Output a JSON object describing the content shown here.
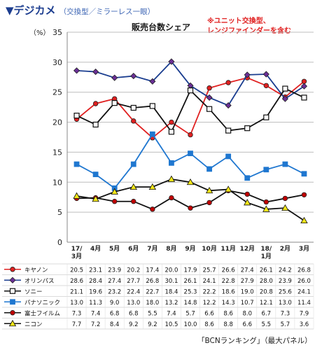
{
  "header": {
    "title": "▼デジカメ",
    "subtitle": "（交換型／ミラーレス一眼）"
  },
  "note": {
    "line1": "※ユニット交換型、",
    "line2": "レンジファインダーを含む"
  },
  "source": "「BCNランキング」（最大パネル）",
  "colors": {
    "red": "#e02020",
    "purple": "#6a2f96",
    "black": "#111111",
    "blue": "#1f77d0",
    "yellow": "#f2e618"
  },
  "chart_data": {
    "type": "line",
    "title": "販売台数シェア",
    "unit": "（%）",
    "ylim": [
      0,
      35
    ],
    "yticks": [
      0,
      5,
      10,
      15,
      20,
      25,
      30,
      35
    ],
    "grid": true,
    "categories": [
      [
        "17/",
        "3月"
      ],
      [
        "4月"
      ],
      [
        "5月"
      ],
      [
        "6月"
      ],
      [
        "7月"
      ],
      [
        "8月"
      ],
      [
        "9月"
      ],
      [
        "10月"
      ],
      [
        "11月"
      ],
      [
        "12月"
      ],
      [
        "18/",
        "1月"
      ],
      [
        "2月"
      ],
      [
        "3月"
      ]
    ],
    "series": [
      {
        "name": "キヤノン",
        "color": "#e02020",
        "marker": "circle",
        "line": "#e02020",
        "values": [
          20.5,
          23.1,
          23.9,
          20.2,
          17.4,
          20.0,
          17.9,
          25.7,
          26.6,
          27.4,
          26.1,
          24.2,
          26.8
        ]
      },
      {
        "name": "オリンパス",
        "color": "#6a2f96",
        "marker": "diamond",
        "line": "#1a3d8f",
        "values": [
          28.6,
          28.4,
          27.4,
          27.7,
          26.8,
          30.1,
          26.1,
          24.1,
          22.8,
          27.9,
          28.0,
          23.9,
          26.0
        ]
      },
      {
        "name": "ソニー",
        "color": "#ffffff",
        "marker": "square-open",
        "line": "#111111",
        "values": [
          21.1,
          19.6,
          23.2,
          22.4,
          22.7,
          18.4,
          25.3,
          22.2,
          18.6,
          19.0,
          20.8,
          25.6,
          24.1
        ]
      },
      {
        "name": "パナソニック",
        "color": "#1f77d0",
        "marker": "square",
        "line": "#1f77d0",
        "values": [
          13.0,
          11.3,
          9.0,
          13.0,
          18.0,
          13.2,
          14.8,
          12.2,
          14.3,
          10.7,
          12.1,
          13.0,
          11.4
        ]
      },
      {
        "name": "富士フイルム",
        "color": "#c00000",
        "marker": "circle",
        "line": "#111111",
        "values": [
          7.3,
          7.4,
          6.8,
          6.8,
          5.5,
          7.4,
          5.7,
          6.6,
          8.6,
          8.0,
          6.7,
          7.3,
          7.9
        ]
      },
      {
        "name": "ニコン",
        "color": "#f2e618",
        "marker": "triangle",
        "line": "#111111",
        "values": [
          7.7,
          7.2,
          8.4,
          9.2,
          9.2,
          10.5,
          10.0,
          8.6,
          8.8,
          6.6,
          5.5,
          5.7,
          3.6
        ]
      }
    ]
  }
}
